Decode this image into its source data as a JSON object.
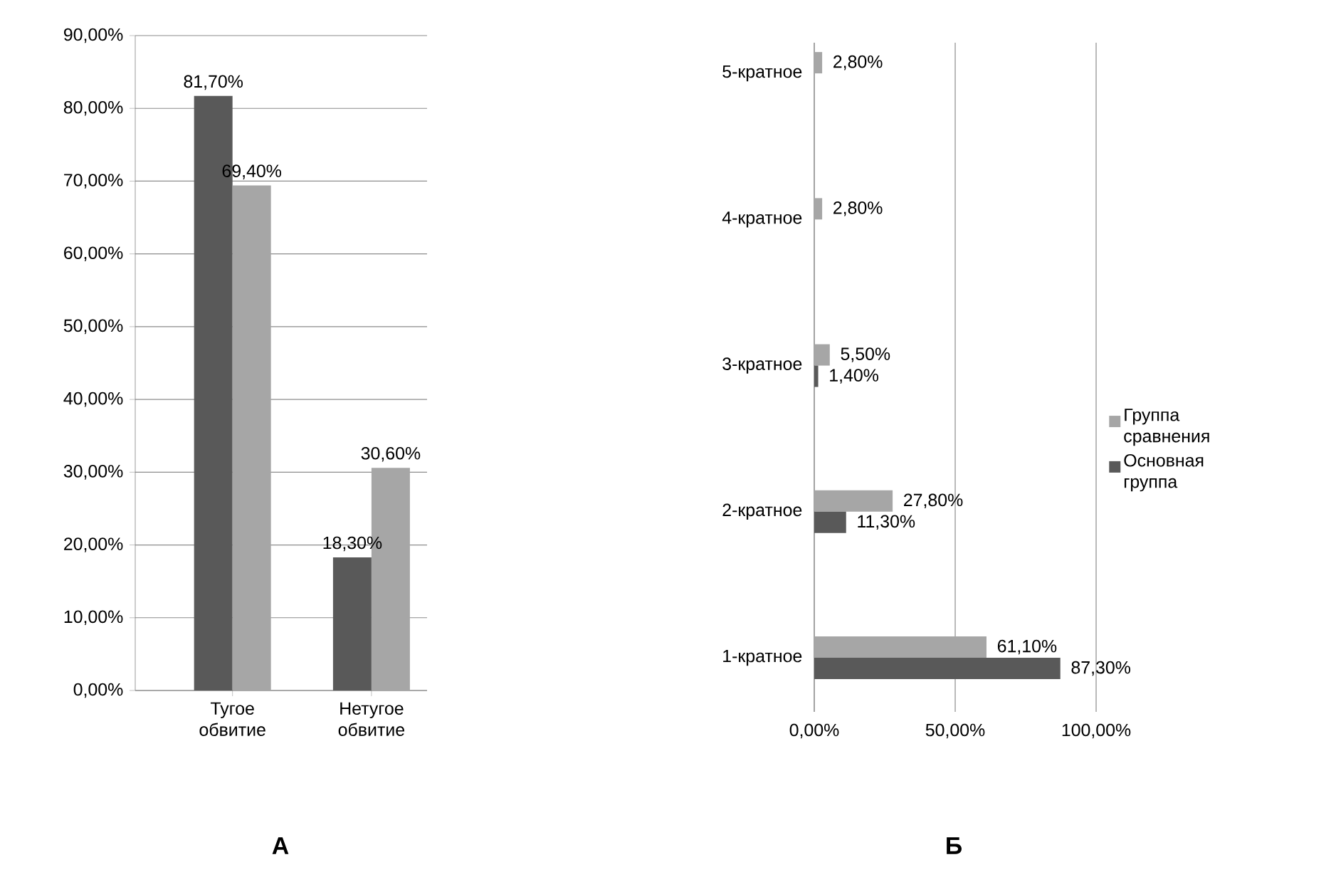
{
  "chart_data": [
    {
      "type": "bar",
      "title": "А",
      "categories": [
        "Тугое обвитие",
        "Нетугое обвитие"
      ],
      "series": [
        {
          "color": "#595959",
          "values": [
            81.7,
            18.3
          ],
          "value_labels": [
            "81,70%",
            "18,30%"
          ]
        },
        {
          "color": "#a6a6a6",
          "values": [
            69.4,
            30.6
          ],
          "value_labels": [
            "69,40%",
            "30,60%"
          ]
        }
      ],
      "ylim": [
        0,
        90
      ],
      "yticks": [
        {
          "value": 0,
          "label": "0,00%"
        },
        {
          "value": 10,
          "label": "10,00%"
        },
        {
          "value": 20,
          "label": "20,00%"
        },
        {
          "value": 30,
          "label": "30,00%"
        },
        {
          "value": 40,
          "label": "40,00%"
        },
        {
          "value": 50,
          "label": "50,00%"
        },
        {
          "value": 60,
          "label": "60,00%"
        },
        {
          "value": 70,
          "label": "70,00%"
        },
        {
          "value": 80,
          "label": "80,00%"
        },
        {
          "value": 90,
          "label": "90,00%"
        }
      ],
      "grid": "y"
    },
    {
      "type": "bar",
      "title": "Б",
      "orientation": "horizontal",
      "categories": [
        "5-кратное",
        "4-кратное",
        "3-кратное",
        "2-кратное",
        "1-кратное"
      ],
      "series": [
        {
          "name": "Группа сравнения",
          "color": "#a6a6a6",
          "values": [
            2.8,
            2.8,
            5.5,
            27.8,
            61.1
          ],
          "value_labels": [
            "2,80%",
            "2,80%",
            "5,50%",
            "27,80%",
            "61,10%"
          ]
        },
        {
          "name": "Основная группа",
          "color": "#595959",
          "values": [
            null,
            null,
            1.4,
            11.3,
            87.3
          ],
          "value_labels": [
            null,
            null,
            "1,40%",
            "11,30%",
            "87,30%"
          ]
        }
      ],
      "xlim": [
        0,
        100
      ],
      "xticks": [
        {
          "value": 0,
          "label": "0,00%"
        },
        {
          "value": 50,
          "label": "50,00%"
        },
        {
          "value": 100,
          "label": "100,00%"
        }
      ],
      "grid": "x",
      "legend": "right"
    }
  ]
}
